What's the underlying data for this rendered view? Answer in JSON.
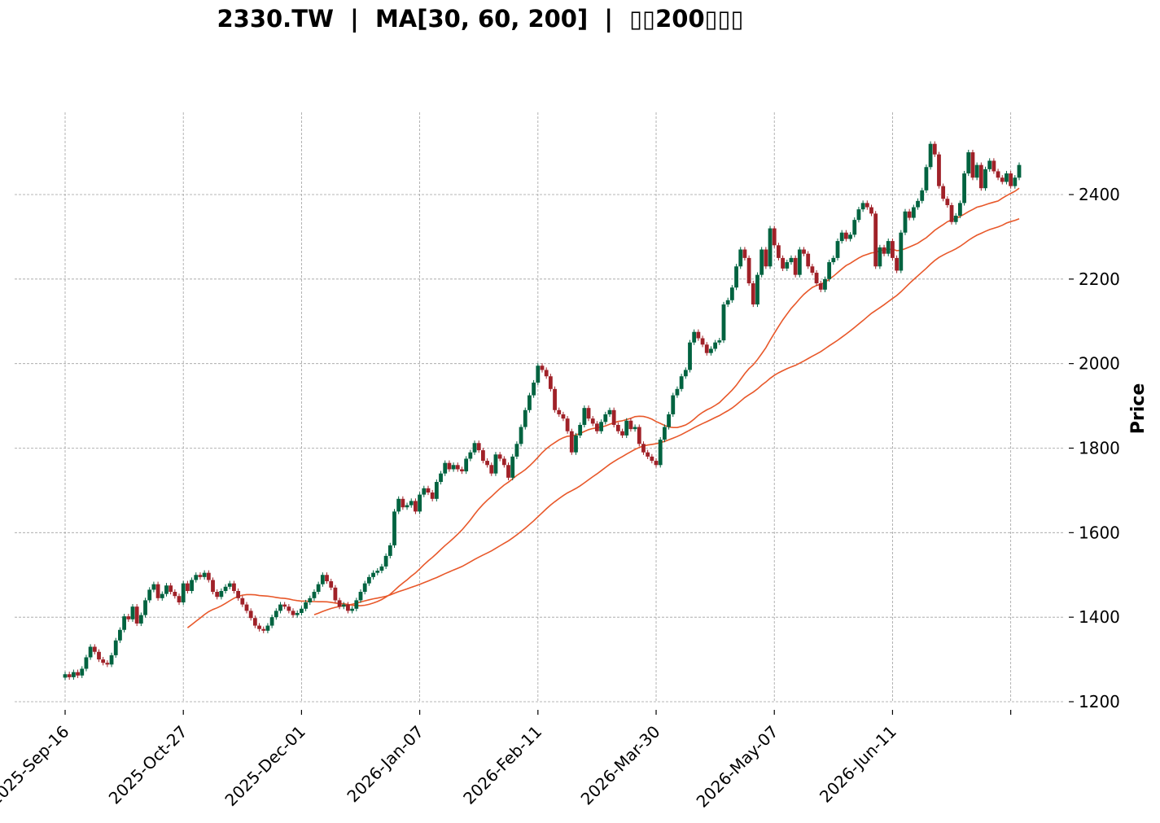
{
  "chart_data": {
    "type": "candlestick",
    "title": "2330.TW  |  MA[30, 60, 200]  |  ▯▯200▯▯▯",
    "ylabel": "Price",
    "xlabel": "",
    "ylim": [
      1180,
      2560
    ],
    "yticks": [
      1200,
      1400,
      1600,
      1800,
      2000,
      2200,
      2400
    ],
    "xtick_labels": [
      "2025-Sep-16",
      "2025-Oct-27",
      "2025-Dec-01",
      "2026-Jan-07",
      "2026-Feb-11",
      "2026-Mar-30",
      "2026-May-07",
      "2026-Jun-11",
      ""
    ],
    "xtick_index": [
      0,
      28,
      56,
      84,
      112,
      140,
      168,
      196,
      224
    ],
    "grid": true,
    "colors": {
      "up": "#006340",
      "down": "#a02128",
      "ma": "#e8582a",
      "grid": "#a0a0a0"
    },
    "closes": [
      1265,
      1258,
      1270,
      1262,
      1278,
      1305,
      1330,
      1318,
      1300,
      1292,
      1288,
      1310,
      1345,
      1370,
      1402,
      1395,
      1425,
      1385,
      1405,
      1440,
      1465,
      1478,
      1445,
      1455,
      1475,
      1460,
      1450,
      1435,
      1480,
      1462,
      1488,
      1500,
      1495,
      1505,
      1488,
      1460,
      1448,
      1462,
      1472,
      1480,
      1462,
      1445,
      1430,
      1415,
      1398,
      1380,
      1372,
      1368,
      1380,
      1400,
      1415,
      1430,
      1425,
      1415,
      1405,
      1410,
      1420,
      1435,
      1445,
      1460,
      1478,
      1500,
      1485,
      1470,
      1440,
      1425,
      1430,
      1415,
      1420,
      1440,
      1460,
      1480,
      1495,
      1505,
      1510,
      1520,
      1545,
      1570,
      1650,
      1680,
      1660,
      1665,
      1675,
      1650,
      1690,
      1705,
      1695,
      1680,
      1720,
      1740,
      1765,
      1750,
      1760,
      1750,
      1745,
      1775,
      1790,
      1812,
      1795,
      1770,
      1760,
      1740,
      1785,
      1775,
      1760,
      1730,
      1780,
      1810,
      1850,
      1890,
      1925,
      1955,
      1995,
      1985,
      1970,
      1940,
      1890,
      1880,
      1870,
      1840,
      1790,
      1830,
      1855,
      1895,
      1870,
      1858,
      1840,
      1862,
      1880,
      1890,
      1855,
      1840,
      1830,
      1865,
      1845,
      1850,
      1810,
      1790,
      1780,
      1770,
      1760,
      1820,
      1850,
      1880,
      1925,
      1940,
      1970,
      1985,
      2050,
      2075,
      2060,
      2045,
      2025,
      2035,
      2050,
      2055,
      2140,
      2150,
      2180,
      2230,
      2270,
      2250,
      2190,
      2140,
      2210,
      2270,
      2230,
      2320,
      2280,
      2250,
      2225,
      2240,
      2250,
      2210,
      2270,
      2260,
      2230,
      2215,
      2190,
      2175,
      2200,
      2240,
      2250,
      2290,
      2310,
      2295,
      2305,
      2340,
      2365,
      2380,
      2370,
      2355,
      2230,
      2275,
      2260,
      2290,
      2250,
      2220,
      2310,
      2360,
      2345,
      2370,
      2385,
      2410,
      2465,
      2520,
      2495,
      2420,
      2390,
      2375,
      2335,
      2350,
      2380,
      2450,
      2500,
      2440,
      2470,
      2415,
      2460,
      2480,
      2455,
      2440,
      2430,
      2450,
      2420,
      2440,
      2470
    ]
  }
}
